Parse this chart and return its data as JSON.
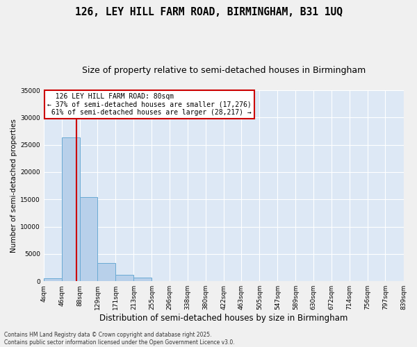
{
  "title": "126, LEY HILL FARM ROAD, BIRMINGHAM, B31 1UQ",
  "subtitle": "Size of property relative to semi-detached houses in Birmingham",
  "xlabel": "Distribution of semi-detached houses by size in Birmingham",
  "ylabel": "Number of semi-detached properties",
  "property_size": 80,
  "property_label": "126 LEY HILL FARM ROAD: 80sqm",
  "pct_smaller": 37,
  "count_smaller": 17276,
  "pct_larger": 61,
  "count_larger": 28217,
  "bin_edges": [
    4,
    46,
    88,
    129,
    171,
    213,
    255,
    296,
    338,
    380,
    422,
    463,
    505,
    547,
    589,
    630,
    672,
    714,
    756,
    797,
    839
  ],
  "bar_heights": [
    500,
    26300,
    15400,
    3300,
    1200,
    600,
    0,
    0,
    0,
    0,
    0,
    0,
    0,
    0,
    0,
    0,
    0,
    0,
    0,
    0
  ],
  "bar_color": "#b8d0ea",
  "bar_edge_color": "#6aaad4",
  "vline_color": "#cc0000",
  "annotation_box_color": "#cc0000",
  "background_color": "#dde8f5",
  "grid_color": "#ffffff",
  "fig_background": "#f0f0f0",
  "ylim": [
    0,
    35000
  ],
  "yticks": [
    0,
    5000,
    10000,
    15000,
    20000,
    25000,
    30000,
    35000
  ],
  "footer": "Contains HM Land Registry data © Crown copyright and database right 2025.\nContains public sector information licensed under the Open Government Licence v3.0.",
  "title_fontsize": 10.5,
  "subtitle_fontsize": 9,
  "tick_fontsize": 6.5,
  "ylabel_fontsize": 7.5,
  "xlabel_fontsize": 8.5,
  "annotation_fontsize": 7
}
